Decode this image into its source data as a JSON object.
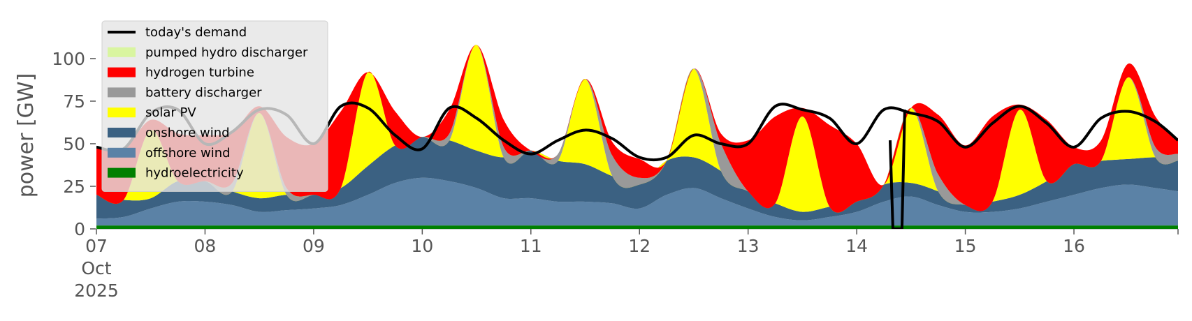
{
  "chart_data": {
    "type": "area",
    "ylabel": "power [GW]",
    "xlabel": "",
    "ylim": [
      0,
      118
    ],
    "xlim": [
      "2025-10-07 00:00",
      "2025-10-16 23:00"
    ],
    "x_ticks": [
      {
        "x": "2025-10-07",
        "label": "07",
        "sublabel": [
          "Oct",
          "2025"
        ]
      },
      {
        "x": "2025-10-08",
        "label": "08"
      },
      {
        "x": "2025-10-09",
        "label": "09"
      },
      {
        "x": "2025-10-10",
        "label": "10"
      },
      {
        "x": "2025-10-11",
        "label": "11"
      },
      {
        "x": "2025-10-12",
        "label": "12"
      },
      {
        "x": "2025-10-13",
        "label": "13"
      },
      {
        "x": "2025-10-14",
        "label": "14"
      },
      {
        "x": "2025-10-15",
        "label": "15"
      },
      {
        "x": "2025-10-16",
        "label": "16"
      }
    ],
    "y_ticks": [
      0,
      25,
      50,
      75,
      100
    ],
    "grid": false,
    "legend": {
      "position": "top-left",
      "entries": [
        {
          "label": "today's demand",
          "color": "#000000",
          "kind": "line"
        },
        {
          "label": "pumped hydro discharger",
          "color": "#d9f5a0",
          "kind": "patch"
        },
        {
          "label": "hydrogen turbine",
          "color": "#ff0000",
          "kind": "patch"
        },
        {
          "label": "battery discharger",
          "color": "#999999",
          "kind": "patch"
        },
        {
          "label": "solar PV",
          "color": "#ffff00",
          "kind": "patch"
        },
        {
          "label": "onshore wind",
          "color": "#3b6182",
          "kind": "patch"
        },
        {
          "label": "offshore wind",
          "color": "#5b82a6",
          "kind": "patch"
        },
        {
          "label": "hydroelectricity",
          "color": "#008000",
          "kind": "patch"
        }
      ]
    },
    "x": [
      "2025-10-07 00:00",
      "2025-10-07 06:00",
      "2025-10-07 12:00",
      "2025-10-07 18:00",
      "2025-10-08 00:00",
      "2025-10-08 06:00",
      "2025-10-08 12:00",
      "2025-10-08 18:00",
      "2025-10-09 00:00",
      "2025-10-09 06:00",
      "2025-10-09 12:00",
      "2025-10-09 18:00",
      "2025-10-10 00:00",
      "2025-10-10 06:00",
      "2025-10-10 12:00",
      "2025-10-10 18:00",
      "2025-10-11 00:00",
      "2025-10-11 06:00",
      "2025-10-11 12:00",
      "2025-10-11 18:00",
      "2025-10-12 00:00",
      "2025-10-12 06:00",
      "2025-10-12 12:00",
      "2025-10-12 18:00",
      "2025-10-13 00:00",
      "2025-10-13 06:00",
      "2025-10-13 12:00",
      "2025-10-13 18:00",
      "2025-10-14 00:00",
      "2025-10-14 06:00",
      "2025-10-14 12:00",
      "2025-10-14 18:00",
      "2025-10-15 00:00",
      "2025-10-15 06:00",
      "2025-10-15 12:00",
      "2025-10-15 18:00",
      "2025-10-16 00:00",
      "2025-10-16 06:00",
      "2025-10-16 12:00",
      "2025-10-16 18:00",
      "2025-10-16 23:00"
    ],
    "series": [
      {
        "name": "hydroelectricity",
        "color": "#008000",
        "values": [
          2,
          2,
          2,
          2,
          2,
          2,
          2,
          2,
          2,
          2,
          2,
          2,
          2,
          2,
          2,
          2,
          2,
          2,
          2,
          2,
          2,
          2,
          2,
          2,
          2,
          2,
          2,
          2,
          2,
          2,
          2,
          2,
          2,
          2,
          2,
          2,
          2,
          2,
          2,
          2,
          2
        ]
      },
      {
        "name": "offshore wind",
        "color": "#5b82a6",
        "values": [
          4,
          5,
          10,
          14,
          14,
          12,
          8,
          9,
          10,
          12,
          18,
          25,
          28,
          26,
          22,
          16,
          16,
          14,
          14,
          13,
          10,
          18,
          22,
          16,
          10,
          5,
          3,
          5,
          8,
          14,
          17,
          12,
          8,
          8,
          10,
          14,
          18,
          22,
          24,
          22,
          20
        ]
      },
      {
        "name": "onshore wind",
        "color": "#3b6182",
        "values": [
          14,
          10,
          6,
          12,
          12,
          8,
          8,
          9,
          8,
          10,
          17,
          22,
          24,
          24,
          22,
          24,
          28,
          24,
          22,
          16,
          14,
          20,
          18,
          16,
          10,
          8,
          5,
          6,
          6,
          10,
          8,
          8,
          4,
          6,
          8,
          12,
          18,
          16,
          15,
          18,
          18
        ]
      },
      {
        "name": "solar PV",
        "color": "#ffff00",
        "values": [
          0,
          0,
          40,
          0,
          0,
          0,
          50,
          0,
          0,
          0,
          55,
          0,
          0,
          0,
          62,
          0,
          0,
          0,
          50,
          0,
          0,
          0,
          52,
          0,
          0,
          0,
          56,
          0,
          0,
          0,
          44,
          0,
          0,
          0,
          50,
          0,
          0,
          0,
          48,
          0,
          0
        ]
      },
      {
        "name": "battery discharger",
        "color": "#999999",
        "values": [
          0,
          0,
          0,
          0,
          0,
          5,
          0,
          4,
          0,
          0,
          0,
          0,
          0,
          4,
          0,
          6,
          0,
          4,
          0,
          12,
          4,
          0,
          0,
          16,
          0,
          0,
          0,
          0,
          0,
          0,
          0,
          10,
          0,
          0,
          0,
          0,
          0,
          0,
          0,
          6,
          4
        ]
      },
      {
        "name": "hydrogen turbine",
        "color": "#ff0000",
        "values": [
          28,
          30,
          6,
          28,
          27,
          30,
          4,
          30,
          30,
          45,
          0,
          20,
          0,
          14,
          0,
          16,
          0,
          0,
          0,
          8,
          11,
          0,
          0,
          6,
          30,
          51,
          5,
          48,
          34,
          0,
          0,
          35,
          35,
          50,
          3,
          36,
          10,
          12,
          8,
          18,
          8
        ]
      },
      {
        "name": "pumped hydro discharger",
        "color": "#d9f5a0",
        "values": [
          0,
          0,
          0,
          0,
          0,
          0,
          0,
          0,
          0,
          0,
          0,
          0,
          0,
          0,
          0,
          0,
          0,
          0,
          0,
          0,
          0,
          0,
          0,
          0,
          0,
          0,
          0,
          0,
          0,
          0,
          0,
          0,
          0,
          0,
          0,
          0,
          0,
          0,
          0,
          0,
          0
        ]
      }
    ],
    "demand": {
      "name": "today's demand",
      "color": "#000000",
      "values": [
        48,
        47,
        68,
        70,
        50,
        57,
        70,
        67,
        50,
        72,
        71,
        55,
        47,
        71,
        65,
        52,
        44,
        52,
        58,
        53,
        42,
        42,
        55,
        50,
        50,
        72,
        70,
        65,
        50,
        70,
        68,
        63,
        48,
        62,
        72,
        62,
        48,
        65,
        69,
        63,
        52
      ],
      "gap": [
        {
          "from": "2025-10-14 08:00",
          "to": "2025-10-14 10:00",
          "value": 0
        }
      ]
    }
  }
}
